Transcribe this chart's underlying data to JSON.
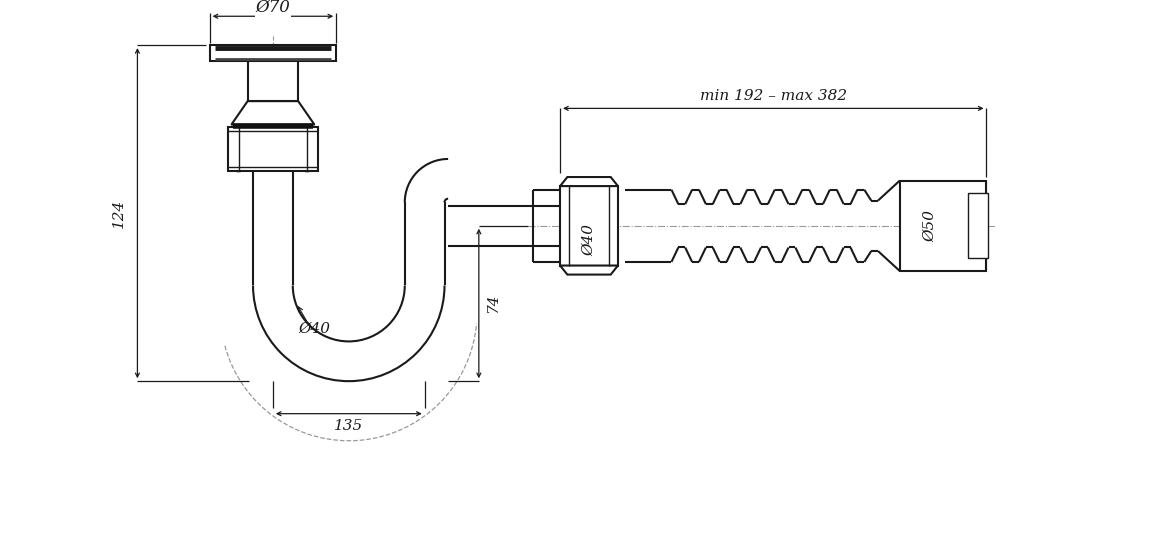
{
  "bg_color": "#ffffff",
  "line_color": "#1a1a1a",
  "dim_color": "#1a1a1a",
  "centerline_color": "#999999",
  "fig_width": 11.6,
  "fig_height": 5.6,
  "annotations": {
    "phi70": "Ø70",
    "phi40_pipe": "Ø40",
    "phi40_connector": "Ø40",
    "phi50": "Ø50",
    "dim_124": "124",
    "dim_135": "135",
    "dim_74": "74",
    "dim_range": "min 192 – max 382"
  }
}
